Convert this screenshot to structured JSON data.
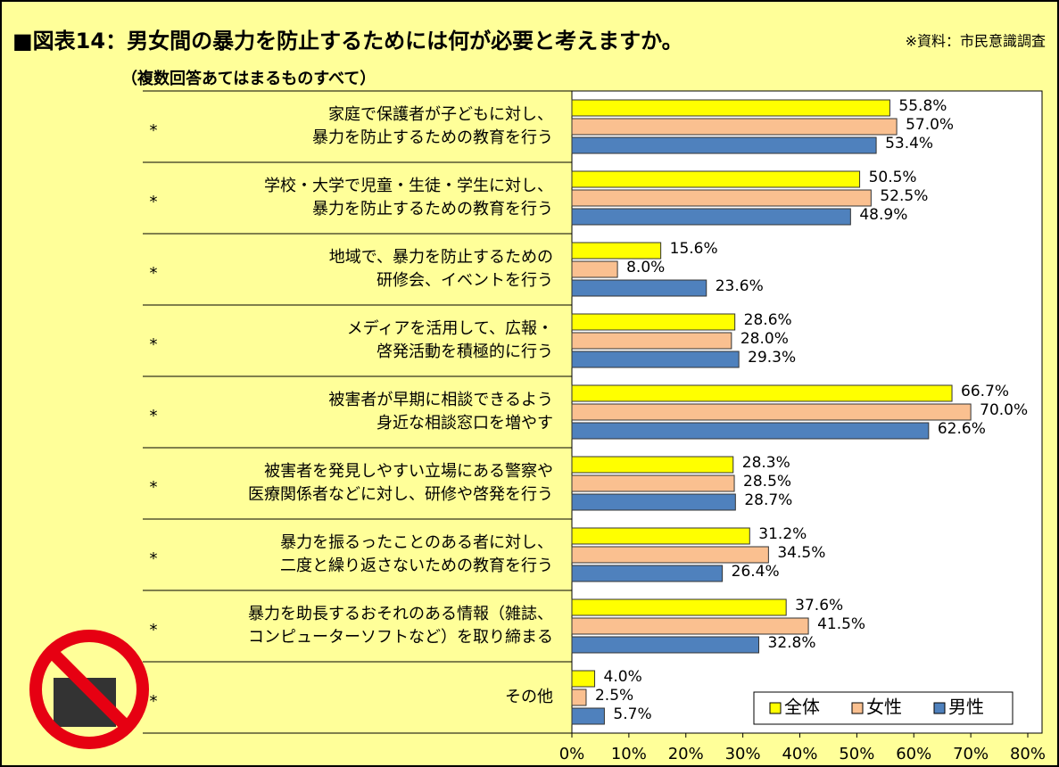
{
  "chart_data": {
    "type": "hbar",
    "title": "■図表14：男女間の暴力を防止するためには何が必要と考えますか。",
    "source": "※資料：市民意識調査",
    "subtitle": "（複数回答あてはまるものすべて）",
    "categories": [
      [
        "家庭で保護者が子どもに対し、",
        "暴力を防止するための教育を行う"
      ],
      [
        "学校・大学で児童・生徒・学生に対し、",
        "暴力を防止するための教育を行う"
      ],
      [
        "地域で、暴力を防止するための",
        "研修会、イベントを行う"
      ],
      [
        "メディアを活用して、広報・",
        "啓発活動を積極的に行う"
      ],
      [
        "被害者が早期に相談できるよう",
        "身近な相談窓口を増やす"
      ],
      [
        "被害者を発見しやすい立場にある警察や",
        "医療関係者などに対し、研修や啓発を行う"
      ],
      [
        "暴力を振るったことのある者に対し、",
        "二度と繰り返さないための教育を行う"
      ],
      [
        "暴力を助長するおそれのある情報（雑誌、",
        "コンピューターソフトなど）を取り締まる"
      ],
      [
        "その他"
      ]
    ],
    "category_markers": [
      "*",
      "*",
      "*",
      "*",
      "*",
      "*",
      "*",
      "*",
      "*"
    ],
    "series": [
      {
        "name": "全体",
        "color": "#ffff00",
        "values": [
          55.8,
          50.5,
          15.6,
          28.6,
          66.7,
          28.3,
          31.2,
          37.6,
          4.0
        ],
        "value_labels": [
          "55.8%",
          "50.5%",
          "15.6%",
          "28.6%",
          "66.7%",
          "28.3%",
          "31.2%",
          "37.6%",
          "4.0%"
        ]
      },
      {
        "name": "女性",
        "color": "#fac090",
        "values": [
          57.0,
          52.5,
          8.0,
          28.0,
          70.0,
          28.5,
          34.5,
          41.5,
          2.5
        ],
        "value_labels": [
          "57.0%",
          "52.5%",
          "8.0%",
          "28.0%",
          "70.0%",
          "28.5%",
          "34.5%",
          "41.5%",
          "2.5%"
        ]
      },
      {
        "name": "男性",
        "color": "#4f81bd",
        "values": [
          53.4,
          48.9,
          23.6,
          29.3,
          62.6,
          28.7,
          26.4,
          32.8,
          5.7
        ],
        "value_labels": [
          "53.4%",
          "48.9%",
          "23.6%",
          "29.3%",
          "62.6%",
          "28.7%",
          "26.4%",
          "32.8%",
          "5.7%"
        ]
      }
    ],
    "xlim": [
      0,
      80
    ],
    "xticks": [
      {
        "value": 0,
        "label": "0%"
      },
      {
        "value": 10,
        "label": "10%"
      },
      {
        "value": 20,
        "label": "20%"
      },
      {
        "value": 30,
        "label": "30%"
      },
      {
        "value": 40,
        "label": "40%"
      },
      {
        "value": 50,
        "label": "50%"
      },
      {
        "value": 60,
        "label": "60%"
      },
      {
        "value": 70,
        "label": "70%"
      },
      {
        "value": 80,
        "label": "80%"
      }
    ],
    "legend": "bottom-right"
  }
}
